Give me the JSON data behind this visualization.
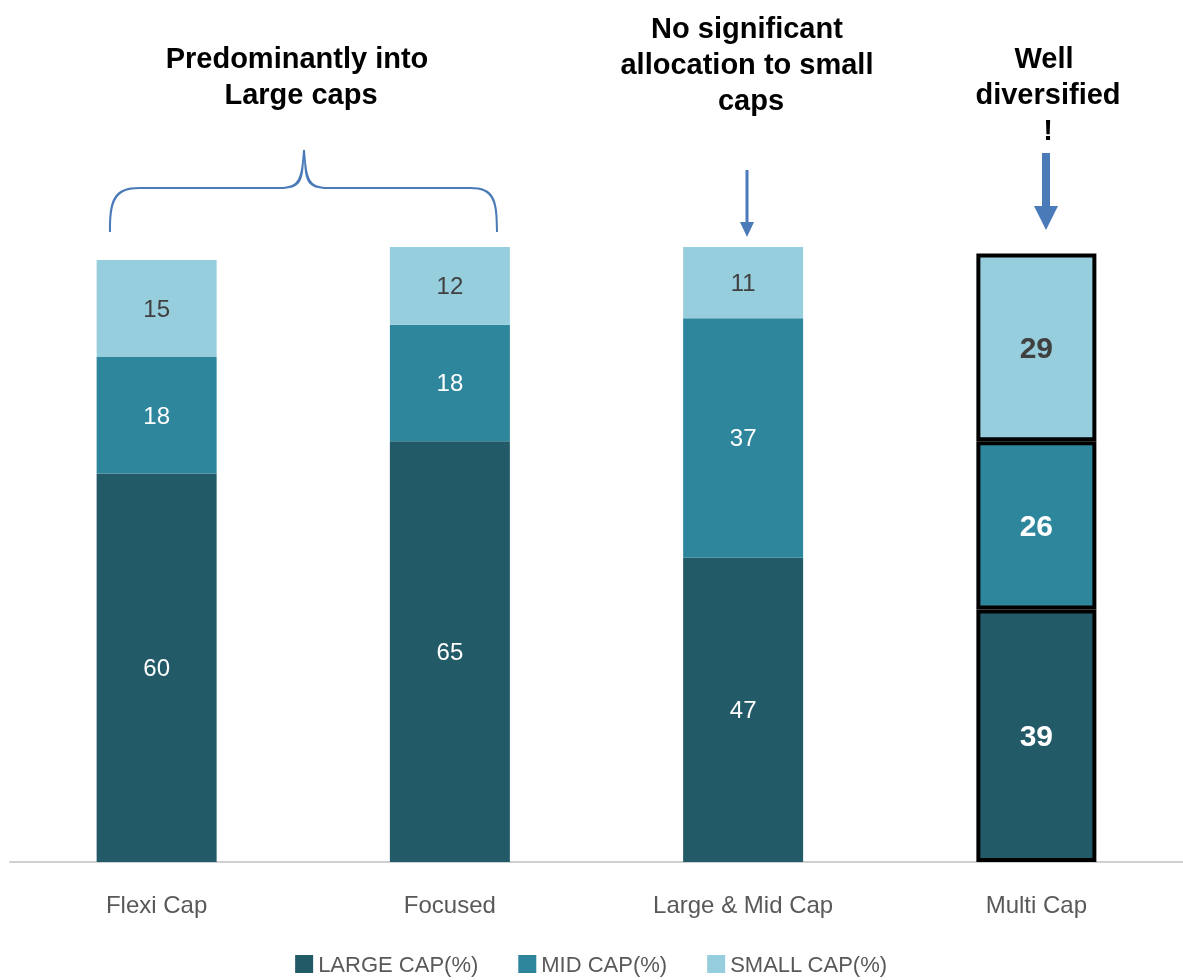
{
  "chart_data": {
    "type": "bar",
    "stacked": true,
    "data_labels": true,
    "legend": "bottom",
    "categories": [
      "Flexi Cap",
      "Focused",
      "Large & Mid Cap",
      "Multi Cap"
    ],
    "series": [
      {
        "name": "LARGE CAP(%)",
        "color": "#235a68",
        "values": [
          60,
          65,
          47,
          39
        ]
      },
      {
        "name": "MID CAP(%)",
        "color": "#2e869d",
        "values": [
          18,
          18,
          37,
          26
        ]
      },
      {
        "name": "SMALL CAP(%)",
        "color": "#96cedd",
        "values": [
          15,
          12,
          11,
          29
        ]
      }
    ],
    "annotations": [
      "Predominantly into Large caps",
      "No significant allocation to small caps",
      "Well diversified!"
    ]
  }
}
